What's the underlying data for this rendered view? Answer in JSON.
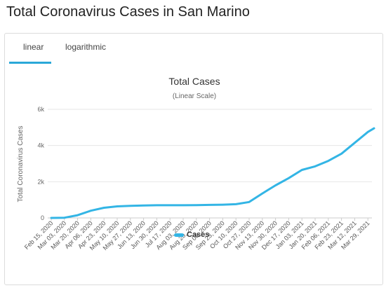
{
  "page": {
    "title": "Total Coronavirus Cases in San Marino"
  },
  "tabs": [
    {
      "label": "linear",
      "active": true
    },
    {
      "label": "logarithmic",
      "active": false
    }
  ],
  "colors": {
    "accent": "#2aa8d8",
    "series": "#33b5e5",
    "grid": "#e6e6e6"
  },
  "chart_data": {
    "type": "line",
    "title": "Total Cases",
    "subtitle": "(Linear Scale)",
    "ylabel": "Total Coronavirus Cases",
    "xlabel": "",
    "ylim": [
      0,
      6000
    ],
    "yticks": [
      0,
      2000,
      4000,
      6000
    ],
    "ytick_labels": [
      "0",
      "2k",
      "4k",
      "6k"
    ],
    "xtick_labels": [
      "Feb 15, 2020",
      "Mar 03, 2020",
      "Mar 20, 2020",
      "Apr 06, 2020",
      "Apr 23, 2020",
      "May 10, 2020",
      "May 27, 2020",
      "Jun 13, 2020",
      "Jun 30, 2020",
      "Jul 17, 2020",
      "Aug 03, 2020",
      "Aug 20, 2020",
      "Sep 06, 2020",
      "Sep 23, 2020",
      "Oct 10, 2020",
      "Oct 27, 2020",
      "Nov 13, 2020",
      "Nov 30, 2020",
      "Dec 17, 2020",
      "Jan 03, 2021",
      "Jan 20, 2021",
      "Feb 06, 2021",
      "Feb 23, 2021",
      "Mar 12, 2021",
      "Mar 29, 2021"
    ],
    "grid": true,
    "legend": "bottom-center",
    "series": [
      {
        "name": "Cases",
        "x": [
          "Feb 15, 2020",
          "Mar 03, 2020",
          "Mar 20, 2020",
          "Apr 06, 2020",
          "Apr 23, 2020",
          "May 10, 2020",
          "May 27, 2020",
          "Jun 13, 2020",
          "Jun 30, 2020",
          "Jul 17, 2020",
          "Aug 03, 2020",
          "Aug 20, 2020",
          "Sep 06, 2020",
          "Sep 23, 2020",
          "Oct 10, 2020",
          "Oct 27, 2020",
          "Nov 13, 2020",
          "Nov 30, 2020",
          "Dec 17, 2020",
          "Jan 03, 2021",
          "Jan 20, 2021",
          "Feb 06, 2021",
          "Feb 23, 2021",
          "Mar 12, 2021",
          "Mar 29, 2021",
          "Apr 06, 2021"
        ],
        "values": [
          0,
          10,
          150,
          400,
          560,
          640,
          670,
          690,
          700,
          700,
          700,
          710,
          720,
          730,
          760,
          880,
          1350,
          1800,
          2200,
          2650,
          2850,
          3150,
          3550,
          4150,
          4750,
          4950
        ]
      }
    ]
  }
}
